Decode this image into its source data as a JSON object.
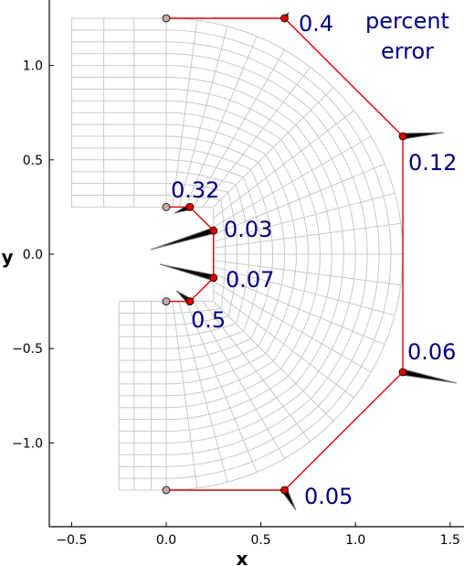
{
  "chart_data": {
    "type": "scatter",
    "xlabel": "x",
    "ylabel": "y",
    "xlim": [
      -0.62,
      1.55
    ],
    "ylim": [
      -1.45,
      1.3
    ],
    "xticks": [
      "−0.5",
      "0.0",
      "0.5",
      "1.0",
      "1.5"
    ],
    "xtick_values": [
      -0.5,
      0.0,
      0.5,
      1.0,
      1.5
    ],
    "yticks": [
      "1.0",
      "0.5",
      "0.0",
      "−0.5",
      "−1.0"
    ],
    "ytick_values": [
      1.0,
      0.5,
      0.0,
      -0.5,
      -1.0
    ],
    "legend_text": [
      "percent",
      "error"
    ],
    "legend_position": "top-right",
    "control_points": [
      {
        "x": 0.0,
        "y": 1.25,
        "fixed": true
      },
      {
        "x": 0.625,
        "y": 1.25,
        "fixed": false,
        "error": "0.4"
      },
      {
        "x": 1.25,
        "y": 0.625,
        "fixed": false,
        "error": "0.12"
      },
      {
        "x": 1.25,
        "y": -0.625,
        "fixed": false,
        "error": "0.06"
      },
      {
        "x": 0.625,
        "y": -1.25,
        "fixed": false,
        "error": "0.05"
      },
      {
        "x": 0.0,
        "y": -1.25,
        "fixed": true
      },
      {
        "x": 0.0,
        "y": 0.25,
        "fixed": true
      },
      {
        "x": 0.125,
        "y": 0.25,
        "fixed": false,
        "error": "0.32"
      },
      {
        "x": 0.25,
        "y": 0.125,
        "fixed": false,
        "error": "0.03"
      },
      {
        "x": 0.25,
        "y": -0.125,
        "fixed": false,
        "error": "0.07"
      },
      {
        "x": 0.125,
        "y": -0.25,
        "fixed": false,
        "error": "0.5"
      },
      {
        "x": 0.0,
        "y": -0.25,
        "fixed": true
      }
    ],
    "colors": {
      "polygon": "#e00000",
      "point_fill": "#e00000",
      "fixed_point_fill": "#c8a8a8",
      "mesh": "#c8c8c8",
      "error_text": "#000080",
      "arrow": "#000000"
    }
  }
}
